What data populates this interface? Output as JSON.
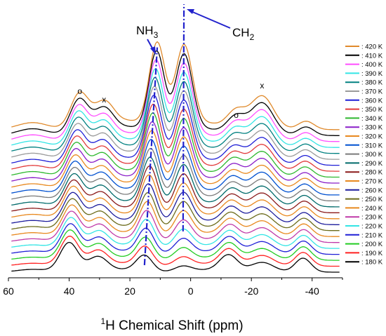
{
  "chart_data": {
    "type": "line",
    "xlabel_sup": "1",
    "xlabel_rest": "H Chemical Shift (ppm)",
    "x_reversed": true,
    "xlim": [
      60,
      -50
    ],
    "x_ticks": [
      60,
      40,
      20,
      0,
      -20,
      -40
    ],
    "x_tick_labels": [
      "60",
      "40",
      "20",
      "0",
      "-20",
      "-40"
    ],
    "legend_position": "right",
    "peaks_ppm": {
      "o_left": 36.5,
      "x_left": 28.5,
      "nh3": 11.0,
      "ch2": 2.2,
      "o_right": -15.0,
      "x_right": -23.5,
      "small_right": -38.0
    },
    "annotations": [
      {
        "text": "o",
        "x": 36.5
      },
      {
        "text": "x",
        "x": 28.5
      },
      {
        "text": "o",
        "x": -15.0
      },
      {
        "text": "x",
        "x": -23.5
      }
    ],
    "nh3_label": {
      "main": "NH",
      "sub": "3"
    },
    "ch2_label": {
      "main": "CH",
      "sub": "2"
    },
    "trend_lines": [
      {
        "name": "NH3 shift",
        "from": {
          "x": 15.2,
          "temp": 180
        },
        "to": {
          "x": 11.0,
          "temp": 420
        }
      },
      {
        "name": "CH2 shift",
        "from": {
          "x": 2.5,
          "temp": 250
        },
        "to": {
          "x": 2.2,
          "temp": 420
        }
      }
    ],
    "series": [
      {
        "name": ": 420 K",
        "color": "#e08a2c"
      },
      {
        "name": ": 410 K",
        "color": "#000000"
      },
      {
        "name": ": 400 K",
        "color": "#ff4dff"
      },
      {
        "name": ": 390 K",
        "color": "#33e5e5"
      },
      {
        "name": ": 380 K",
        "color": "#008080"
      },
      {
        "name": ": 370 K",
        "color": "#9a9a9a"
      },
      {
        "name": ": 360 K",
        "color": "#1f1fd6"
      },
      {
        "name": ": 350 K",
        "color": "#e23a3a"
      },
      {
        "name": ": 340 K",
        "color": "#2eb82e"
      },
      {
        "name": ": 330 K",
        "color": "#8a1ec8"
      },
      {
        "name": ": 320 K",
        "color": "#e8891f"
      },
      {
        "name": ": 310 K",
        "color": "#0050d0"
      },
      {
        "name": ": 300 K",
        "color": "#7a7a7a"
      },
      {
        "name": ": 290 K",
        "color": "#006a6a"
      },
      {
        "name": ": 280 K",
        "color": "#8b1a1a"
      },
      {
        "name": ": 270 K",
        "color": "#e8891f"
      },
      {
        "name": ": 260 K",
        "color": "#1c1c9c"
      },
      {
        "name": ": 250 K",
        "color": "#6b6b1a"
      },
      {
        "name": ": 240 K",
        "color": "#e8891f"
      },
      {
        "name": ": 230 K",
        "color": "#c03aa8"
      },
      {
        "name": ": 220 K",
        "color": "#33e5e5"
      },
      {
        "name": ": 210 K",
        "color": "#1f1fd6"
      },
      {
        "name": ": 200 K",
        "color": "#22cc22"
      },
      {
        "name": ": 190 K",
        "color": "#ff2020"
      },
      {
        "name": ": 180 K",
        "color": "#000000"
      }
    ]
  }
}
